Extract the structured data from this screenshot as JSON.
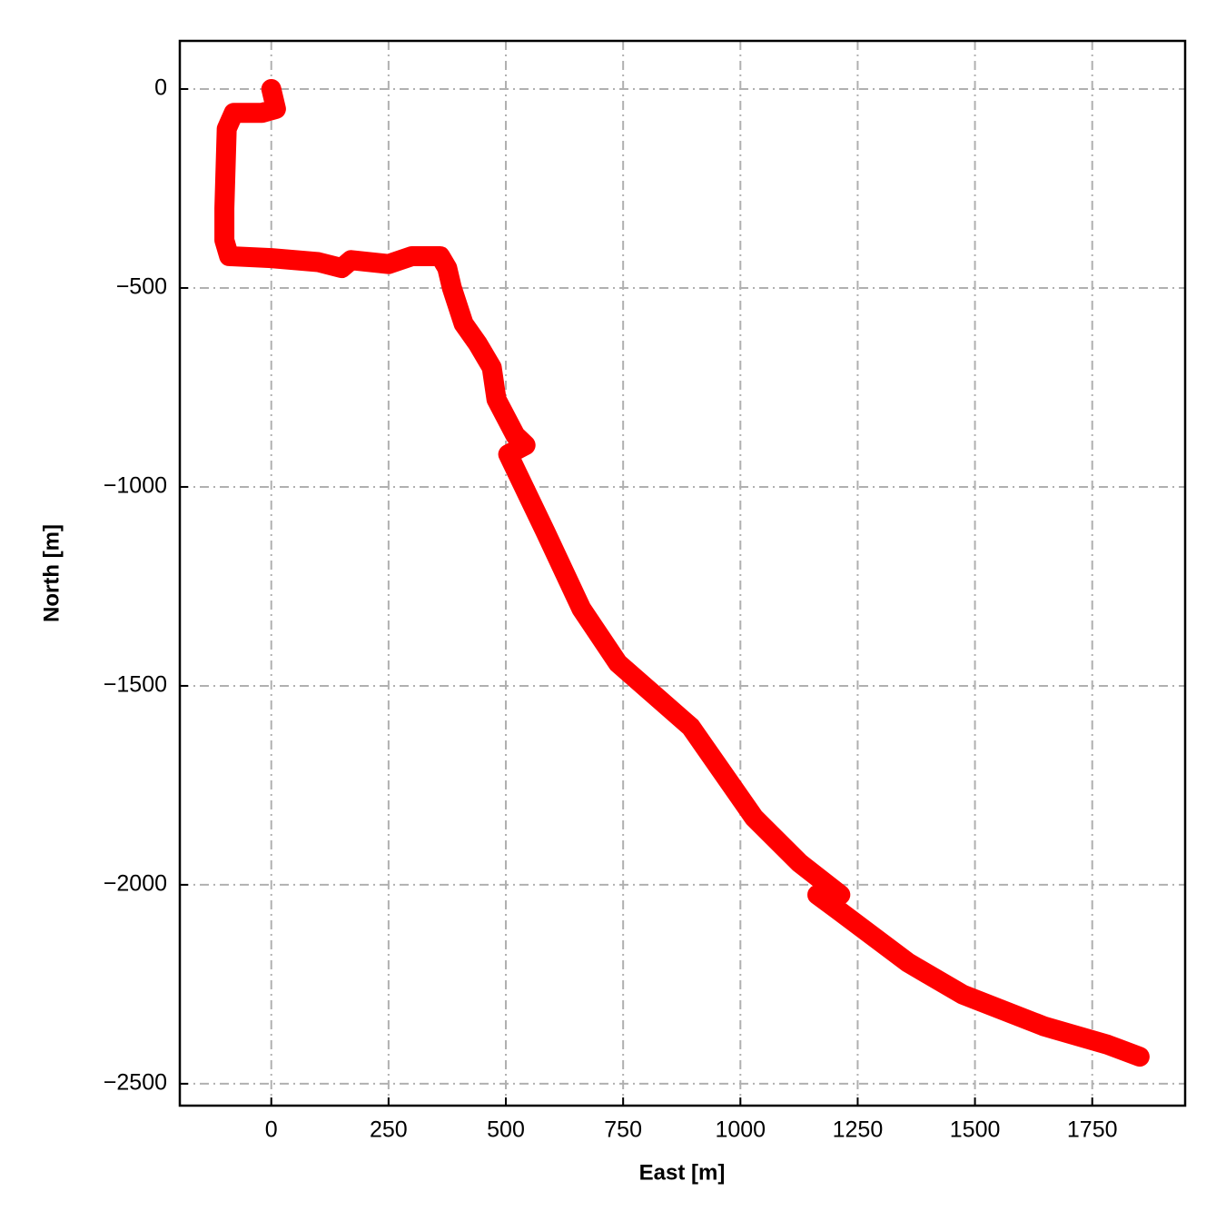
{
  "chart_data": {
    "type": "line",
    "x_label": "East [m]",
    "y_label": "North [m]",
    "xlim": [
      -195,
      1948
    ],
    "ylim": [
      -2555,
      121
    ],
    "xticks": [
      0,
      250,
      500,
      750,
      1000,
      1250,
      1500,
      1750
    ],
    "yticks": [
      {
        "value": 0,
        "label": "0"
      },
      {
        "value": -500,
        "label": "−500"
      },
      {
        "value": -1000,
        "label": "−1000"
      },
      {
        "value": -1500,
        "label": "−1500"
      },
      {
        "value": -2000,
        "label": "−2000"
      },
      {
        "value": -2500,
        "label": "−2500"
      }
    ],
    "grid": true,
    "series": [
      {
        "color": "#ff0000",
        "x": [
          0,
          10,
          -20,
          -80,
          -95,
          -100,
          -100,
          -90,
          0,
          100,
          150,
          170,
          250,
          300,
          360,
          375,
          385,
          410,
          440,
          470,
          480,
          520,
          542,
          505,
          584,
          661,
          739,
          894,
          1029,
          1126,
          1213,
          1164,
          1203,
          1358,
          1474,
          1648,
          1783,
          1851
        ],
        "values": [
          0,
          -50,
          -60,
          -60,
          -100,
          -300,
          -380,
          -420,
          -425,
          -435,
          -450,
          -430,
          -440,
          -420,
          -420,
          -450,
          -500,
          -590,
          -640,
          -700,
          -780,
          -870,
          -895,
          -918,
          -1112,
          -1306,
          -1443,
          -1603,
          -1831,
          -1945,
          -2025,
          -2025,
          -2059,
          -2196,
          -2276,
          -2356,
          -2402,
          -2432
        ]
      }
    ]
  }
}
